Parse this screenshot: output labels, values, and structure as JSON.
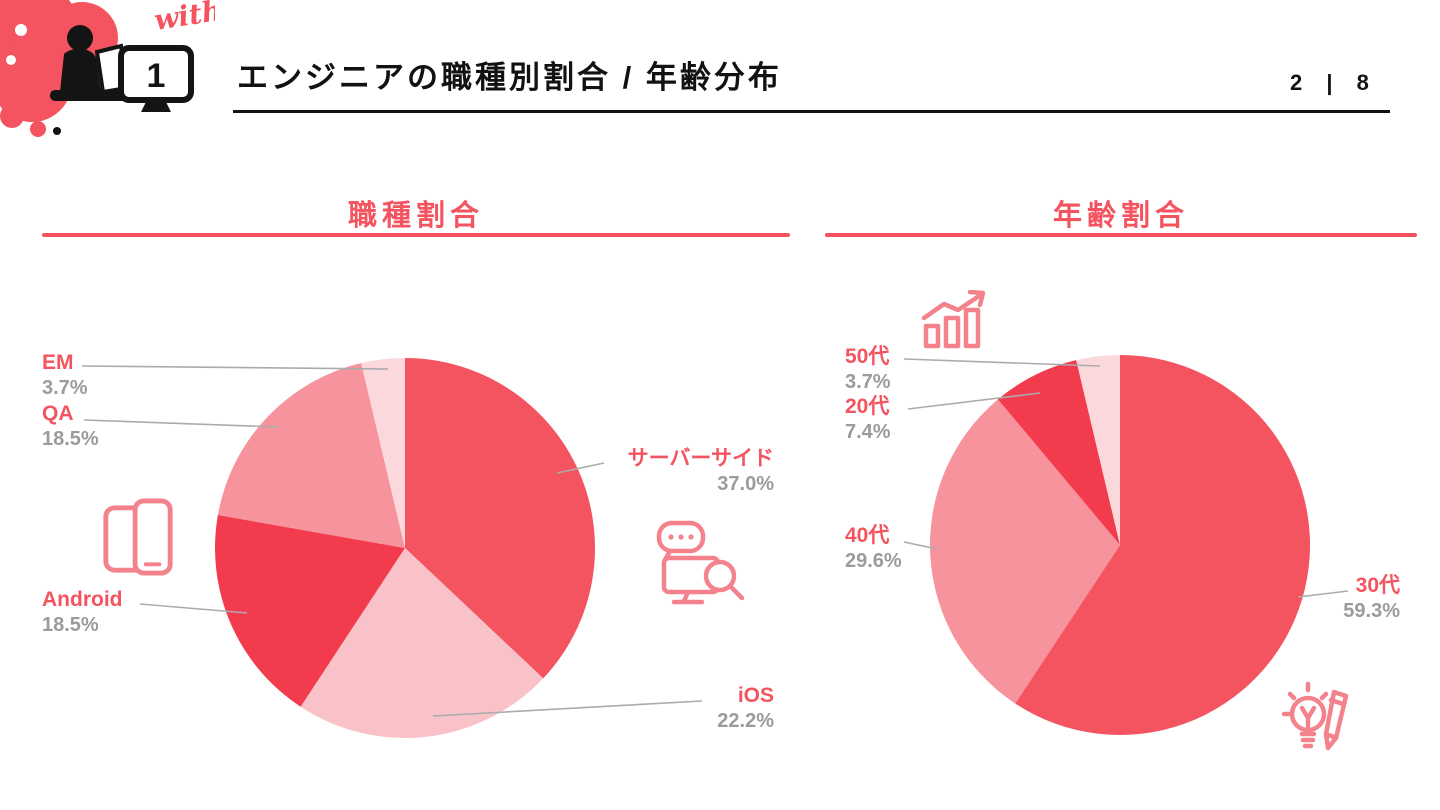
{
  "header": {
    "brand": "with",
    "slide_number": "1",
    "title": "エンジニアの職種別割合 / 年齢分布",
    "page": "2 | 8"
  },
  "colors": {
    "accent": "#F4545F",
    "strong_red": "#F23B4C",
    "medium_pink": "#F7939C",
    "light_pink": "#F9C2C8",
    "pale_pink": "#FBD8DB",
    "percent_gray": "#9B9B9E",
    "leader_line_gray": "#ABABAD",
    "icon_pink": "#F4828C",
    "ink": "#121212"
  },
  "icons": {
    "logo": "person-at-computer-illustration",
    "left_chart": "smartphone-devices-icon",
    "center": "monitor-chat-search-icon",
    "right_top": "growth-bars-arrow-icon",
    "right_bottom": "lightbulb-pencil-icon"
  },
  "chart_data": [
    {
      "type": "pie",
      "title": "職種割合",
      "categories": [
        "サーバーサイド",
        "iOS",
        "Android",
        "QA",
        "EM"
      ],
      "values": [
        37.0,
        22.2,
        18.5,
        18.5,
        3.7
      ],
      "value_labels": [
        "37.0%",
        "22.2%",
        "18.5%",
        "18.5%",
        "3.7%"
      ],
      "colors": [
        "#F4545F",
        "#F9C2C8",
        "#F23B4C",
        "#F7939C",
        "#FBD8DB"
      ],
      "start_angle_deg": 0,
      "direction": "clockwise",
      "legend": "none"
    },
    {
      "type": "pie",
      "title": "年齢割合",
      "categories": [
        "30代",
        "40代",
        "20代",
        "50代"
      ],
      "values": [
        59.3,
        29.6,
        7.4,
        3.7
      ],
      "value_labels": [
        "59.3%",
        "29.6%",
        "7.4%",
        "3.7%"
      ],
      "colors": [
        "#F4545F",
        "#F7939C",
        "#F23B4C",
        "#FBD8DB"
      ],
      "start_angle_deg": 0,
      "direction": "clockwise",
      "legend": "none"
    }
  ]
}
